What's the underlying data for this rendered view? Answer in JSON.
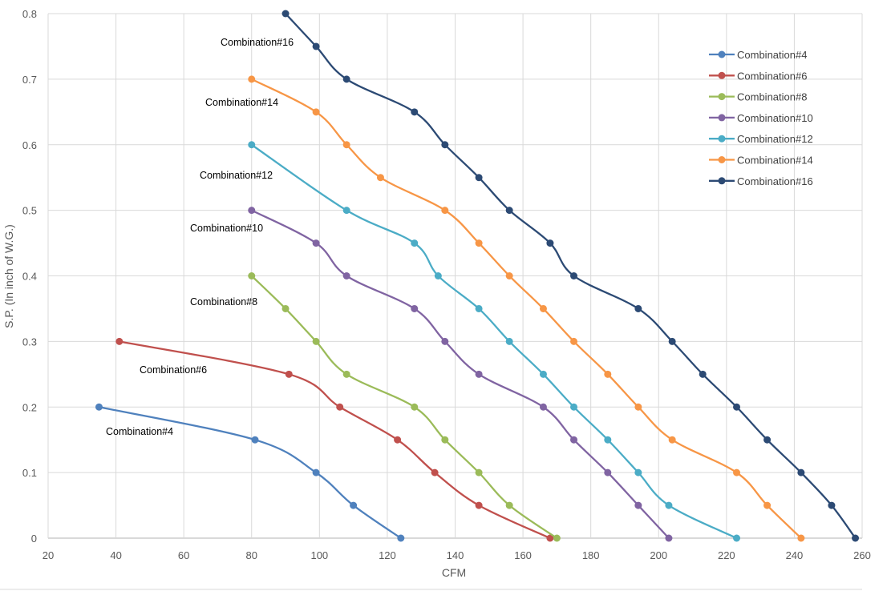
{
  "chart_data": {
    "type": "line",
    "title": "",
    "xlabel": "CFM",
    "ylabel": "S.P. (In inch of W.G.)",
    "xlim": [
      20,
      260
    ],
    "ylim": [
      0,
      0.8
    ],
    "xticks": [
      "20",
      "40",
      "60",
      "80",
      "100",
      "120",
      "140",
      "160",
      "180",
      "200",
      "220",
      "240",
      "260"
    ],
    "yticks": [
      "0",
      "0.1",
      "0.2",
      "0.3",
      "0.4",
      "0.5",
      "0.6",
      "0.7",
      "0.8"
    ],
    "grid": true,
    "smooth": true,
    "legend_position": "top-right",
    "series": [
      {
        "name": "Combination#4",
        "color": "#4f81bd",
        "x": [
          35,
          81,
          99,
          110,
          124
        ],
        "y": [
          0.2,
          0.15,
          0.1,
          0.05,
          0
        ]
      },
      {
        "name": "Combination#6",
        "color": "#c0504d",
        "x": [
          41,
          91,
          106,
          123,
          134,
          147,
          168
        ],
        "y": [
          0.3,
          0.25,
          0.2,
          0.15,
          0.1,
          0.05,
          0
        ]
      },
      {
        "name": "Combination#8",
        "color": "#9bbb59",
        "x": [
          80,
          90,
          99,
          108,
          128,
          137,
          147,
          156,
          170
        ],
        "y": [
          0.4,
          0.35,
          0.3,
          0.25,
          0.2,
          0.15,
          0.1,
          0.05,
          0
        ]
      },
      {
        "name": "Combination#10",
        "color": "#8064a2",
        "x": [
          80,
          99,
          108,
          128,
          137,
          147,
          166,
          175,
          185,
          194,
          203
        ],
        "y": [
          0.5,
          0.45,
          0.4,
          0.35,
          0.3,
          0.25,
          0.2,
          0.15,
          0.1,
          0.05,
          0
        ]
      },
      {
        "name": "Combination#12",
        "color": "#4bacc6",
        "x": [
          80,
          108,
          128,
          135,
          147,
          156,
          166,
          175,
          185,
          194,
          203,
          223
        ],
        "y": [
          0.6,
          0.5,
          0.45,
          0.4,
          0.35,
          0.3,
          0.25,
          0.2,
          0.15,
          0.1,
          0.05,
          0
        ]
      },
      {
        "name": "Combination#14",
        "color": "#f79646",
        "x": [
          80,
          99,
          108,
          118,
          137,
          147,
          156,
          166,
          175,
          185,
          194,
          204,
          223,
          232,
          242
        ],
        "y": [
          0.7,
          0.65,
          0.6,
          0.55,
          0.5,
          0.45,
          0.4,
          0.35,
          0.3,
          0.25,
          0.2,
          0.15,
          0.1,
          0.05,
          0
        ]
      },
      {
        "name": "Combination#16",
        "color": "#2c4a74",
        "x": [
          90,
          99,
          108,
          128,
          137,
          147,
          156,
          168,
          175,
          194,
          204,
          213,
          223,
          232,
          242,
          251,
          258
        ],
        "y": [
          0.8,
          0.75,
          0.7,
          0.65,
          0.6,
          0.55,
          0.5,
          0.45,
          0.4,
          0.35,
          0.3,
          0.25,
          0.2,
          0.15,
          0.1,
          0.05,
          0
        ]
      }
    ],
    "annotations": [
      "Combination#4",
      "Combination#6",
      "Combination#8",
      "Combination#10",
      "Combination#12",
      "Combination#14",
      "Combination#16"
    ]
  }
}
